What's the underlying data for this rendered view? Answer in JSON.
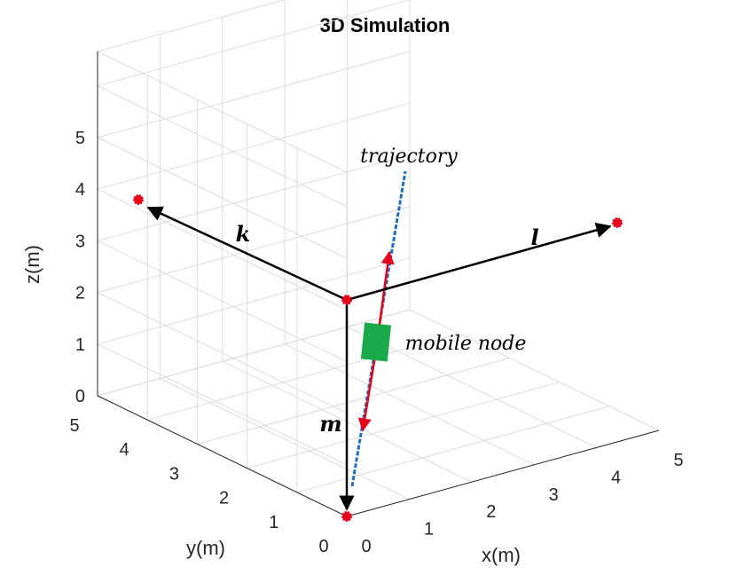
{
  "chart_data": {
    "type": "scatter",
    "title": "3D Simulation",
    "xlabel": "x(m)",
    "ylabel": "y(m)",
    "zlabel": "z(m)",
    "xlim": [
      0,
      5
    ],
    "ylim": [
      0,
      5
    ],
    "zlim": [
      0,
      5
    ],
    "xticks": [
      "0",
      "1",
      "2",
      "3",
      "4",
      "5"
    ],
    "yticks": [
      "0",
      "1",
      "2",
      "3",
      "4",
      "5"
    ],
    "zticks": [
      "0",
      "1",
      "2",
      "3",
      "4",
      "5"
    ],
    "grid": true,
    "colors": {
      "anchor": "#e6001a",
      "vector": "#000000",
      "trajectory": "#1f6fbf",
      "motion": "#e6001a",
      "node": "#1aaa4a"
    },
    "anchors": [
      {
        "x": 0,
        "y": 0,
        "z": 0
      },
      {
        "x": 0,
        "y": 5,
        "z": 4.5
      },
      {
        "x": 5,
        "y": 0,
        "z": 4.5
      },
      {
        "x": 2.5,
        "y": 2.5,
        "z": 4.5
      }
    ],
    "annotations": {
      "k": "k",
      "l": "l",
      "m": "m",
      "trajectory": "trajectory",
      "node": "mobile node"
    }
  }
}
